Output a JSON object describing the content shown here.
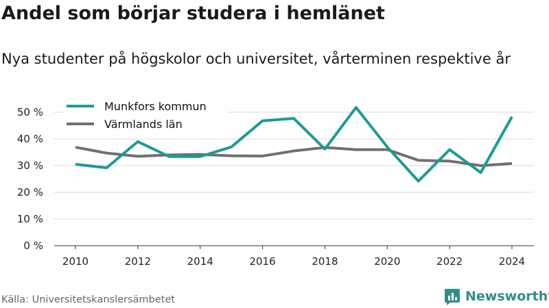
{
  "header": {
    "title": "Andel som börjar studera i hemlänet",
    "subtitle": "Nya studenter på högskolor och universitet, vårterminen respektive år"
  },
  "footer": {
    "source": "Källa: Universitetskanslersämbetet",
    "brand": "Newsworthy"
  },
  "icons": {
    "brand_logo": "bar-chart-logo-icon"
  },
  "chart_data": {
    "type": "line",
    "title": "Andel som börjar studera i hemlänet",
    "subtitle": "Nya studenter på högskolor och universitet, vårterminen respektive år",
    "xlabel": "",
    "ylabel": "",
    "x": [
      2010,
      2011,
      2012,
      2013,
      2014,
      2015,
      2016,
      2017,
      2018,
      2019,
      2020,
      2021,
      2022,
      2023,
      2024
    ],
    "x_ticks": [
      2010,
      2012,
      2014,
      2016,
      2018,
      2020,
      2022,
      2024
    ],
    "y_ticks": [
      0,
      10,
      20,
      30,
      40,
      50
    ],
    "y_tick_labels": [
      "0 %",
      "10 %",
      "20 %",
      "30 %",
      "40 %",
      "50 %"
    ],
    "xlim": [
      2010,
      2024
    ],
    "ylim": [
      0,
      50
    ],
    "grid": "horizontal",
    "legend_position": "top-left",
    "series": [
      {
        "name": "Munkfors kommun",
        "color": "#1a9c94",
        "values": [
          30.5,
          29.2,
          39,
          33.4,
          33.4,
          37,
          46.8,
          47.7,
          36.2,
          51.8,
          37,
          24.2,
          36,
          27.4,
          48.3
        ]
      },
      {
        "name": "Värmlands län",
        "color": "#707070",
        "values": [
          36.9,
          34.7,
          33.5,
          34,
          34.2,
          33.7,
          33.6,
          35.5,
          36.8,
          36,
          36,
          32,
          31.7,
          30,
          30.8
        ]
      }
    ]
  }
}
